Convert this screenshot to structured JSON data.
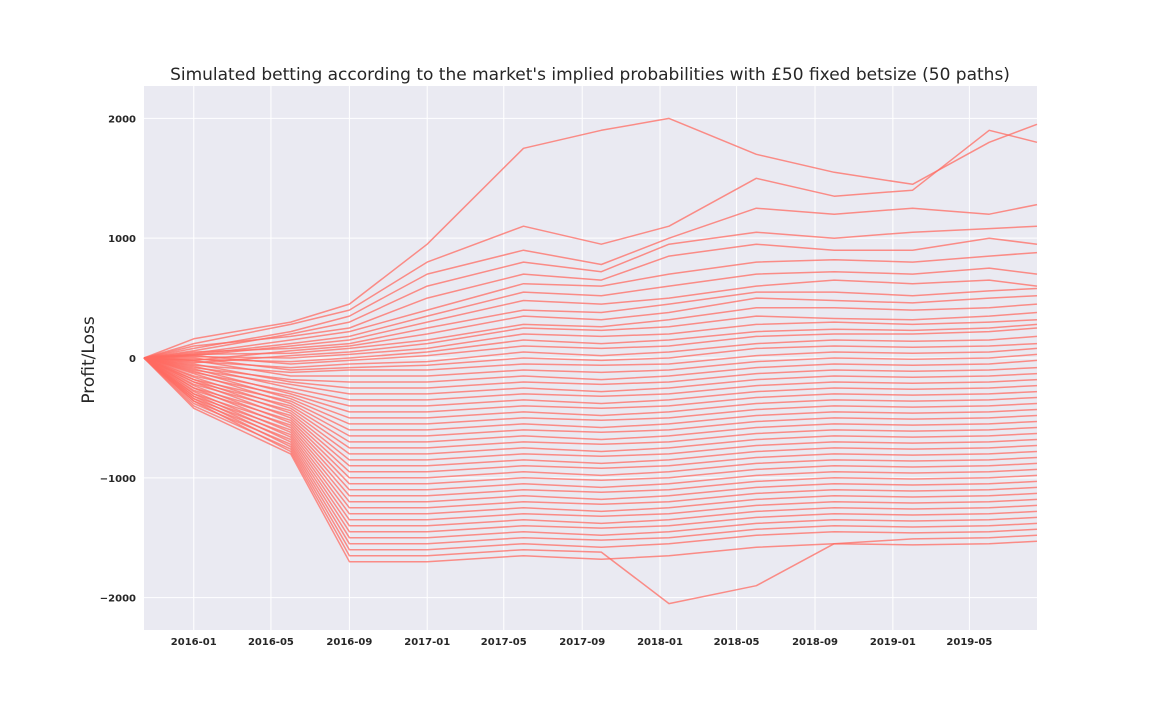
{
  "chart_data": {
    "type": "line",
    "title": "Simulated betting according to the market's implied probabilities with £50 fixed betsize (50 paths)",
    "xlabel": "",
    "ylabel": "Profit/Loss",
    "xlim": [
      "2015-10-15",
      "2019-08-15"
    ],
    "ylim": [
      -2270,
      2270
    ],
    "x_ticks": [
      "2016-01",
      "2016-05",
      "2016-09",
      "2017-01",
      "2017-05",
      "2017-09",
      "2018-01",
      "2018-05",
      "2018-09",
      "2019-01",
      "2019-05"
    ],
    "y_ticks": [
      2000,
      1000,
      0,
      -1000,
      -2000
    ],
    "y_tick_labels": [
      "2000",
      "1000",
      "0",
      "−1000",
      "−2000"
    ],
    "grid": true,
    "background": "#eaeaf2",
    "line_color": "#ff6b61",
    "x": [
      "2015-10-15",
      "2016-01-01",
      "2016-06-01",
      "2016-09-01",
      "2017-01-01",
      "2017-06-01",
      "2017-10-01",
      "2018-01-15",
      "2018-06-01",
      "2018-10-01",
      "2019-02-01",
      "2019-06-01",
      "2019-08-15"
    ],
    "series": [
      {
        "values": [
          0,
          160,
          300,
          450,
          950,
          1750,
          1900,
          2000,
          1700,
          1550,
          1450,
          1800,
          1950
        ]
      },
      {
        "values": [
          0,
          120,
          280,
          400,
          800,
          1100,
          950,
          1100,
          1500,
          1350,
          1400,
          1900,
          1800
        ]
      },
      {
        "values": [
          0,
          80,
          220,
          350,
          700,
          900,
          780,
          1000,
          1250,
          1200,
          1250,
          1200,
          1280
        ]
      },
      {
        "values": [
          0,
          60,
          200,
          300,
          600,
          800,
          720,
          950,
          1050,
          1000,
          1050,
          1080,
          1100
        ]
      },
      {
        "values": [
          0,
          100,
          180,
          250,
          500,
          700,
          650,
          850,
          950,
          900,
          900,
          1000,
          950
        ]
      },
      {
        "values": [
          0,
          40,
          150,
          220,
          400,
          620,
          600,
          700,
          800,
          820,
          800,
          850,
          880
        ]
      },
      {
        "values": [
          0,
          30,
          120,
          180,
          350,
          550,
          520,
          600,
          700,
          720,
          700,
          750,
          700
        ]
      },
      {
        "values": [
          0,
          20,
          100,
          150,
          300,
          480,
          450,
          500,
          600,
          650,
          620,
          650,
          600
        ]
      },
      {
        "values": [
          0,
          50,
          80,
          120,
          250,
          400,
          380,
          450,
          550,
          550,
          520,
          560,
          580
        ]
      },
      {
        "values": [
          0,
          -20,
          60,
          100,
          200,
          350,
          320,
          380,
          500,
          480,
          460,
          500,
          520
        ]
      },
      {
        "values": [
          0,
          30,
          40,
          80,
          150,
          280,
          260,
          320,
          420,
          420,
          400,
          420,
          450
        ]
      },
      {
        "values": [
          0,
          -40,
          20,
          50,
          120,
          250,
          230,
          260,
          350,
          330,
          320,
          350,
          380
        ]
      },
      {
        "values": [
          0,
          10,
          0,
          30,
          80,
          200,
          180,
          200,
          280,
          300,
          280,
          300,
          320
        ]
      },
      {
        "values": [
          0,
          -10,
          -30,
          0,
          50,
          150,
          120,
          150,
          220,
          240,
          230,
          250,
          280
        ]
      },
      {
        "values": [
          0,
          20,
          -50,
          -20,
          20,
          100,
          80,
          100,
          180,
          200,
          200,
          220,
          250
        ]
      },
      {
        "values": [
          0,
          -30,
          -80,
          -50,
          -30,
          50,
          20,
          50,
          120,
          150,
          140,
          150,
          180
        ]
      },
      {
        "values": [
          0,
          0,
          -100,
          -80,
          -60,
          0,
          -20,
          0,
          80,
          100,
          90,
          100,
          120
        ]
      },
      {
        "values": [
          0,
          -60,
          -120,
          -100,
          -100,
          -50,
          -60,
          -50,
          20,
          50,
          40,
          50,
          80
        ]
      },
      {
        "values": [
          0,
          -20,
          -150,
          -150,
          -150,
          -100,
          -120,
          -100,
          -30,
          0,
          -10,
          0,
          30
        ]
      },
      {
        "values": [
          0,
          -80,
          -180,
          -200,
          -200,
          -150,
          -180,
          -150,
          -80,
          -50,
          -60,
          -50,
          -20
        ]
      },
      {
        "values": [
          0,
          -50,
          -200,
          -250,
          -250,
          -200,
          -220,
          -200,
          -130,
          -100,
          -110,
          -100,
          -80
        ]
      },
      {
        "values": [
          0,
          -100,
          -220,
          -300,
          -300,
          -250,
          -280,
          -250,
          -180,
          -150,
          -160,
          -150,
          -130
        ]
      },
      {
        "values": [
          0,
          -70,
          -250,
          -350,
          -350,
          -300,
          -320,
          -300,
          -230,
          -200,
          -210,
          -200,
          -180
        ]
      },
      {
        "values": [
          0,
          -120,
          -280,
          -400,
          -400,
          -350,
          -380,
          -350,
          -280,
          -250,
          -260,
          -250,
          -230
        ]
      },
      {
        "values": [
          0,
          -90,
          -300,
          -450,
          -450,
          -400,
          -420,
          -400,
          -330,
          -300,
          -310,
          -300,
          -280
        ]
      },
      {
        "values": [
          0,
          -150,
          -320,
          -500,
          -500,
          -450,
          -480,
          -450,
          -380,
          -350,
          -360,
          -350,
          -330
        ]
      },
      {
        "values": [
          0,
          -110,
          -340,
          -550,
          -550,
          -500,
          -520,
          -500,
          -430,
          -400,
          -410,
          -400,
          -380
        ]
      },
      {
        "values": [
          0,
          -180,
          -360,
          -600,
          -600,
          -550,
          -580,
          -550,
          -480,
          -450,
          -460,
          -450,
          -430
        ]
      },
      {
        "values": [
          0,
          -130,
          -380,
          -650,
          -650,
          -600,
          -620,
          -600,
          -530,
          -500,
          -510,
          -500,
          -480
        ]
      },
      {
        "values": [
          0,
          -200,
          -400,
          -700,
          -700,
          -650,
          -680,
          -650,
          -580,
          -550,
          -560,
          -550,
          -530
        ]
      },
      {
        "values": [
          0,
          -160,
          -420,
          -750,
          -750,
          -700,
          -720,
          -700,
          -630,
          -600,
          -610,
          -600,
          -580
        ]
      },
      {
        "values": [
          0,
          -220,
          -440,
          -800,
          -800,
          -750,
          -780,
          -750,
          -680,
          -650,
          -660,
          -650,
          -630
        ]
      },
      {
        "values": [
          0,
          -180,
          -460,
          -850,
          -850,
          -800,
          -820,
          -800,
          -730,
          -700,
          -710,
          -700,
          -680
        ]
      },
      {
        "values": [
          0,
          -250,
          -480,
          -900,
          -900,
          -850,
          -880,
          -850,
          -780,
          -750,
          -760,
          -750,
          -730
        ]
      },
      {
        "values": [
          0,
          -200,
          -500,
          -950,
          -950,
          -900,
          -920,
          -900,
          -830,
          -800,
          -810,
          -800,
          -780
        ]
      },
      {
        "values": [
          0,
          -270,
          -520,
          -1000,
          -1000,
          -950,
          -980,
          -950,
          -880,
          -850,
          -860,
          -850,
          -830
        ]
      },
      {
        "values": [
          0,
          -230,
          -540,
          -1050,
          -1050,
          -1000,
          -1020,
          -1000,
          -930,
          -900,
          -910,
          -900,
          -880
        ]
      },
      {
        "values": [
          0,
          -300,
          -560,
          -1100,
          -1100,
          -1050,
          -1080,
          -1050,
          -980,
          -950,
          -960,
          -950,
          -930
        ]
      },
      {
        "values": [
          0,
          -250,
          -580,
          -1150,
          -1150,
          -1100,
          -1120,
          -1100,
          -1030,
          -1000,
          -1010,
          -1000,
          -980
        ]
      },
      {
        "values": [
          0,
          -320,
          -600,
          -1200,
          -1200,
          -1150,
          -1180,
          -1150,
          -1080,
          -1050,
          -1060,
          -1050,
          -1030
        ]
      },
      {
        "values": [
          0,
          -280,
          -620,
          -1250,
          -1250,
          -1200,
          -1220,
          -1200,
          -1130,
          -1100,
          -1110,
          -1100,
          -1080
        ]
      },
      {
        "values": [
          0,
          -340,
          -640,
          -1300,
          -1300,
          -1250,
          -1280,
          -1250,
          -1180,
          -1150,
          -1160,
          -1150,
          -1130
        ]
      },
      {
        "values": [
          0,
          -300,
          -660,
          -1350,
          -1350,
          -1300,
          -1320,
          -1300,
          -1230,
          -1200,
          -1210,
          -1200,
          -1180
        ]
      },
      {
        "values": [
          0,
          -360,
          -680,
          -1400,
          -1400,
          -1350,
          -1380,
          -1350,
          -1280,
          -1250,
          -1260,
          -1250,
          -1230
        ]
      },
      {
        "values": [
          0,
          -320,
          -700,
          -1450,
          -1450,
          -1400,
          -1420,
          -1400,
          -1330,
          -1300,
          -1310,
          -1300,
          -1280
        ]
      },
      {
        "values": [
          0,
          -380,
          -720,
          -1500,
          -1500,
          -1450,
          -1480,
          -1450,
          -1380,
          -1350,
          -1360,
          -1350,
          -1330
        ]
      },
      {
        "values": [
          0,
          -340,
          -740,
          -1550,
          -1550,
          -1500,
          -1520,
          -1500,
          -1430,
          -1400,
          -1410,
          -1400,
          -1380
        ]
      },
      {
        "values": [
          0,
          -400,
          -760,
          -1600,
          -1600,
          -1550,
          -1580,
          -1550,
          -1480,
          -1450,
          -1460,
          -1450,
          -1430
        ]
      },
      {
        "values": [
          0,
          -360,
          -780,
          -1650,
          -1650,
          -1600,
          -1620,
          -2050,
          -1900,
          -1550,
          -1510,
          -1500,
          -1480
        ]
      },
      {
        "values": [
          0,
          -420,
          -800,
          -1700,
          -1700,
          -1650,
          -1680,
          -1650,
          -1580,
          -1550,
          -1560,
          -1550,
          -1530
        ]
      }
    ]
  }
}
